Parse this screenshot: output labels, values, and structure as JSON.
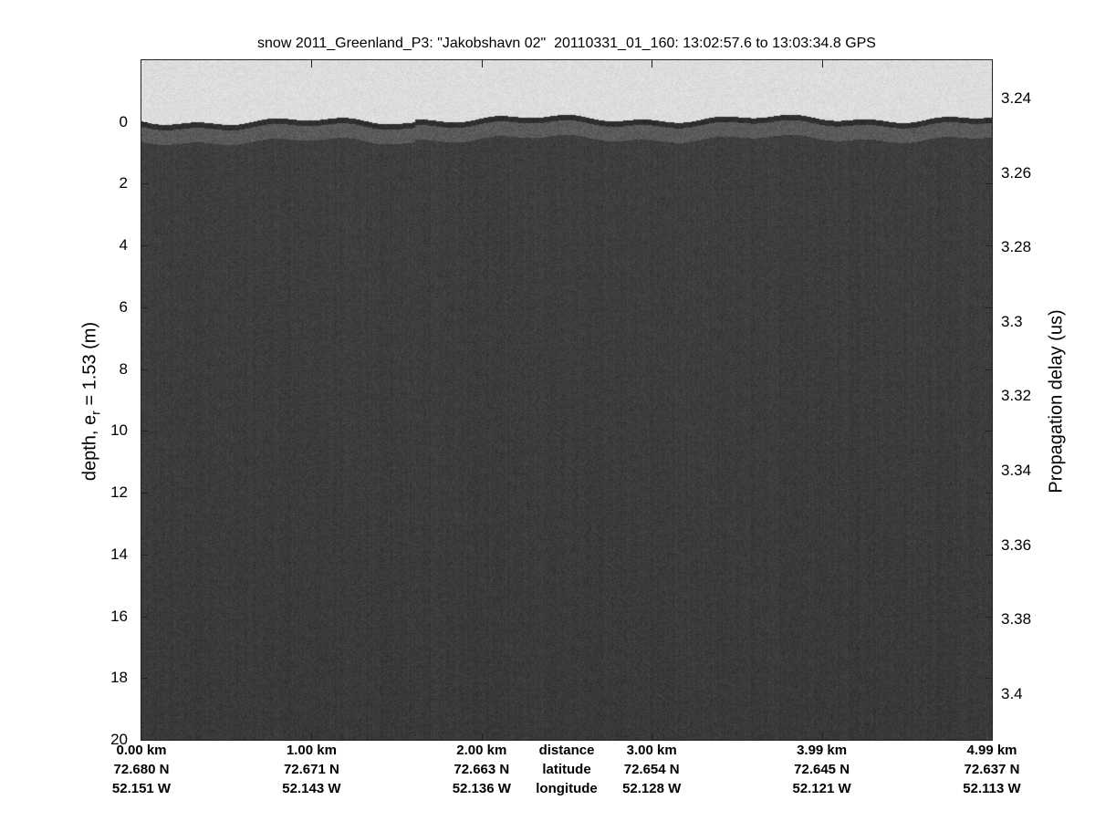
{
  "chart_data": {
    "type": "heatmap",
    "title": "snow 2011_Greenland_P3: \"Jakobshavn 02\"  20110331_01_160: 13:02:57.6 to 13:03:34.8 GPS",
    "ylabel_prefix": "depth, e",
    "ylabel_sub": "r",
    "ylabel_suffix": " = 1.53 (m)",
    "ylabel_right": "Propagation delay (us)",
    "colormap": "gray",
    "ylim": [
      -2,
      20
    ],
    "ylim_right": [
      3.2297,
      3.4123
    ],
    "yticks": [
      "0",
      "2",
      "4",
      "6",
      "8",
      "10",
      "12",
      "14",
      "16",
      "18",
      "20"
    ],
    "yticks_right": [
      "3.24",
      "3.26",
      "3.28",
      "3.3",
      "3.32",
      "3.34",
      "3.36",
      "3.38",
      "3.4"
    ],
    "surface_depth_m": 0,
    "x_rows": [
      {
        "label": "distance",
        "values": [
          "0.00 km",
          "1.00 km",
          "2.00 km",
          "3.00 km",
          "3.99 km",
          "4.99 km"
        ]
      },
      {
        "label": "latitude",
        "values": [
          "72.680 N",
          "72.671 N",
          "72.663 N",
          "72.654 N",
          "72.645 N",
          "72.637 N"
        ]
      },
      {
        "label": "longitude",
        "values": [
          "52.151 W",
          "52.143 W",
          "52.136 W",
          "52.128 W",
          "52.121 W",
          "52.113 W"
        ]
      }
    ],
    "colors": {
      "air": "#d6d6d6",
      "surface_band": "#2a2a2a",
      "snow": "#3b3b3b"
    }
  }
}
